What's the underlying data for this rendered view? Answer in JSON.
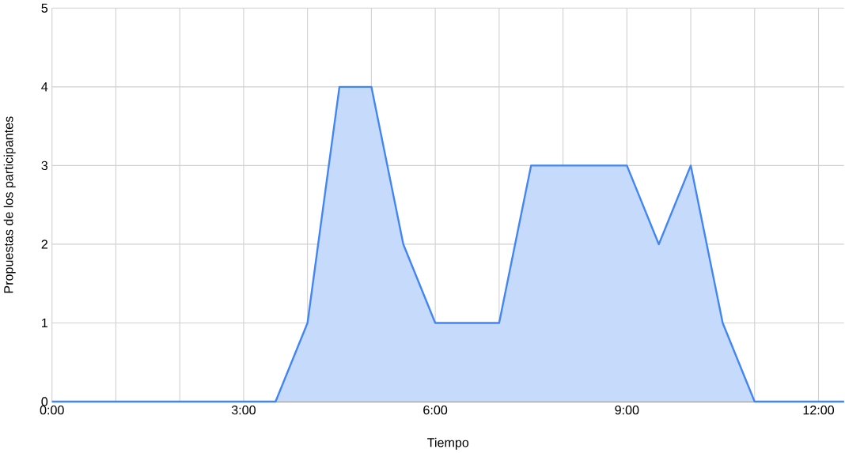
{
  "chart_data": {
    "type": "area",
    "xlabel": "Tiempo",
    "ylabel": "Propuestas de los participantes",
    "x": [
      0,
      0.5,
      1,
      1.5,
      2,
      2.5,
      3,
      3.5,
      4,
      4.5,
      5,
      5.5,
      6,
      6.5,
      7,
      7.5,
      8,
      8.5,
      9,
      9.5,
      10,
      10.5,
      11,
      11.5,
      12,
      12.4
    ],
    "series": [
      {
        "color": "#4285f4",
        "values": [
          0,
          0,
          0,
          0,
          0,
          0,
          0,
          0,
          1,
          4,
          4,
          2,
          1,
          1,
          1,
          3,
          3,
          3,
          3,
          2,
          3,
          1,
          0,
          0,
          0,
          0
        ]
      }
    ],
    "xlim": [
      0,
      12.4
    ],
    "ylim": [
      0,
      5
    ],
    "xticks": [
      {
        "value": 0,
        "label": "0:00"
      },
      {
        "value": 1,
        "label": null
      },
      {
        "value": 2,
        "label": null
      },
      {
        "value": 3,
        "label": "3:00"
      },
      {
        "value": 4,
        "label": null
      },
      {
        "value": 5,
        "label": null
      },
      {
        "value": 6,
        "label": "6:00"
      },
      {
        "value": 7,
        "label": null
      },
      {
        "value": 8,
        "label": null
      },
      {
        "value": 9,
        "label": "9:00"
      },
      {
        "value": 10,
        "label": null
      },
      {
        "value": 11,
        "label": null
      },
      {
        "value": 12,
        "label": "12:00"
      }
    ],
    "yticks": [
      0,
      1,
      2,
      3,
      4,
      5
    ],
    "grid": true
  }
}
